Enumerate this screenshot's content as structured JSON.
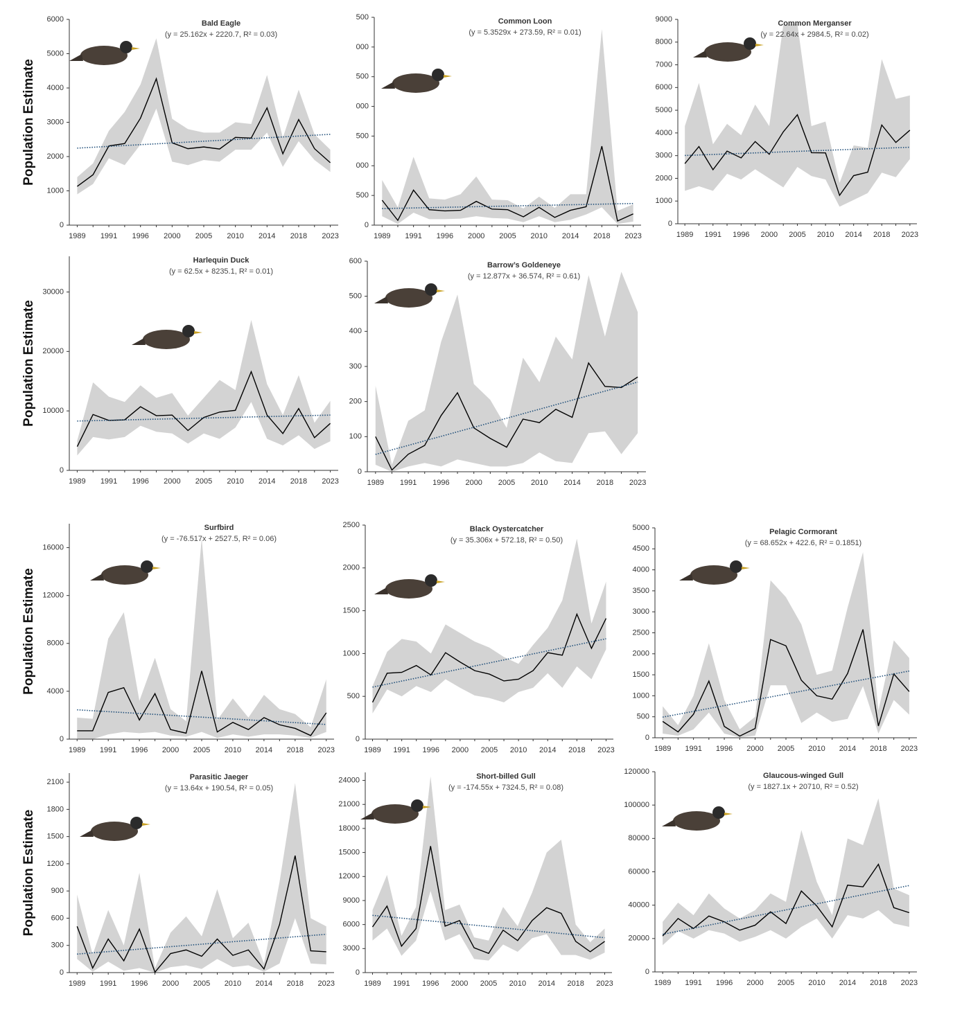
{
  "chart_data": [
    {
      "type": "band-line",
      "title": "Bald Eagle",
      "subtitle": "(y = 25.162x + 2220.7, R² = 0.03)",
      "ylabel": "Population Estimate",
      "categories": [
        "1989",
        null,
        "1991",
        null,
        "1996",
        null,
        "2000",
        null,
        "2005",
        null,
        "2010",
        null,
        "2014",
        null,
        "2018",
        null,
        "2023"
      ],
      "values": [
        1130,
        1470,
        2310,
        2380,
        3120,
        4270,
        2400,
        2230,
        2280,
        2220,
        2560,
        2540,
        3420,
        2080,
        3080,
        2230,
        1820
      ],
      "upper": [
        1400,
        1800,
        2750,
        3300,
        4100,
        5450,
        3100,
        2800,
        2700,
        2700,
        3000,
        2950,
        4380,
        2550,
        3950,
        2650,
        2200
      ],
      "lower": [
        900,
        1200,
        1950,
        1750,
        2350,
        3400,
        1850,
        1750,
        1900,
        1850,
        2200,
        2200,
        2700,
        1700,
        2450,
        1900,
        1550
      ],
      "trend": {
        "slope": 25.162,
        "intercept": 2220.7
      },
      "ylim": [
        0,
        6000
      ],
      "yticks": [
        0,
        1000,
        2000,
        3000,
        4000,
        5000,
        6000
      ],
      "line_color": "#000000",
      "band_color": "#d3d3d3",
      "trend_color": "#1f4e79"
    },
    {
      "type": "band-line",
      "title": "Common Loon",
      "subtitle": "(y = 5.3529x + 273.59, R² = 0.01)",
      "categories": [
        "1989",
        null,
        "1991",
        null,
        "1996",
        null,
        "2000",
        null,
        "2005",
        null,
        "2010",
        null,
        "2014",
        null,
        "2018",
        null,
        "2023"
      ],
      "values": [
        420,
        80,
        590,
        260,
        240,
        250,
        400,
        270,
        260,
        140,
        300,
        130,
        250,
        310,
        1330,
        70,
        190
      ],
      "upper": [
        760,
        300,
        1150,
        450,
        430,
        520,
        820,
        430,
        420,
        280,
        480,
        290,
        520,
        520,
        3300,
        240,
        350
      ],
      "lower": [
        150,
        20,
        210,
        100,
        100,
        110,
        150,
        120,
        110,
        50,
        150,
        50,
        90,
        180,
        300,
        20,
        60
      ],
      "trend": {
        "slope": 5.3529,
        "intercept": 273.59
      },
      "ylim": [
        0,
        3500
      ],
      "yticks": [
        0,
        500,
        {
          "value": 1000,
          "label": "000"
        },
        {
          "value": 1500,
          "label": "500"
        },
        {
          "value": 2000,
          "label": "000"
        },
        {
          "value": 2500,
          "label": "500"
        },
        {
          "value": 3000,
          "label": "000"
        },
        {
          "value": 3500,
          "label": "500"
        }
      ],
      "line_color": "#000000",
      "band_color": "#d3d3d3",
      "trend_color": "#1f4e79"
    },
    {
      "type": "band-line",
      "title": "Common Merganser",
      "subtitle": "(y = 22.64x + 2984.5, R² = 0.02)",
      "categories": [
        "1989",
        null,
        "1991",
        null,
        "1996",
        null,
        "2000",
        null,
        "2005",
        null,
        "2010",
        null,
        "2014",
        null,
        "2018",
        null,
        "2023"
      ],
      "values": [
        2650,
        3400,
        2380,
        3200,
        2900,
        3620,
        3060,
        4050,
        4800,
        3130,
        3120,
        1250,
        2120,
        2270,
        4350,
        3580,
        4120
      ],
      "upper": [
        4300,
        6200,
        3500,
        4400,
        3900,
        5250,
        4300,
        8750,
        8800,
        4300,
        4500,
        1800,
        3450,
        3350,
        7250,
        5500,
        5650
      ],
      "lower": [
        1450,
        1650,
        1450,
        2200,
        1950,
        2400,
        2000,
        1600,
        2500,
        2100,
        1950,
        750,
        1050,
        1350,
        2250,
        2050,
        2850
      ],
      "trend": {
        "slope": 22.64,
        "intercept": 2984.5
      },
      "ylim": [
        0,
        9000
      ],
      "yticks": [
        0,
        1000,
        2000,
        3000,
        4000,
        5000,
        6000,
        7000,
        8000,
        9000
      ],
      "line_color": "#000000",
      "band_color": "#d3d3d3",
      "trend_color": "#1f4e79"
    },
    {
      "type": "band-line",
      "title": "Harlequin Duck",
      "subtitle": "(y = 62.5x + 8235.1, R² = 0.01)",
      "ylabel": "Population Estimate",
      "categories": [
        "1989",
        null,
        "1991",
        null,
        "1996",
        null,
        "2000",
        null,
        "2005",
        null,
        "2010",
        null,
        "2014",
        null,
        "2018",
        null,
        "2023"
      ],
      "values": [
        4000,
        9400,
        8400,
        8500,
        10700,
        9200,
        9300,
        6700,
        8900,
        9800,
        10100,
        16600,
        9300,
        6200,
        10400,
        5500,
        7900
      ],
      "upper": [
        5000,
        14800,
        12400,
        11500,
        14300,
        12200,
        13000,
        9200,
        12200,
        15200,
        13500,
        25300,
        14500,
        9300,
        16000,
        8000,
        11700
      ],
      "lower": [
        2500,
        5600,
        5200,
        5600,
        7500,
        6500,
        6200,
        4500,
        6200,
        5300,
        7200,
        11500,
        5300,
        4200,
        5900,
        3600,
        4900
      ],
      "trend": {
        "slope": 62.5,
        "intercept": 8235.1
      },
      "ylim": [
        0,
        36000
      ],
      "yticks": [
        0,
        10000,
        20000,
        30000
      ],
      "line_color": "#000000",
      "band_color": "#d3d3d3",
      "trend_color": "#1f4e79"
    },
    {
      "type": "band-line",
      "title": "Barrow’s Goldeneye",
      "subtitle": "(y = 12.877x + 36.574, R² = 0.61)",
      "categories": [
        "1989",
        null,
        "1991",
        null,
        "1996",
        null,
        "2000",
        null,
        "2005",
        null,
        "2010",
        null,
        "2014",
        null,
        "2018",
        null,
        "2023"
      ],
      "values": [
        100,
        5,
        50,
        75,
        160,
        225,
        125,
        95,
        70,
        150,
        140,
        178,
        155,
        310,
        243,
        240,
        270
      ],
      "upper": [
        245,
        20,
        145,
        175,
        370,
        505,
        250,
        205,
        125,
        325,
        255,
        385,
        320,
        560,
        385,
        570,
        455
      ],
      "lower": [
        20,
        0,
        15,
        25,
        15,
        35,
        25,
        15,
        15,
        25,
        55,
        30,
        25,
        110,
        115,
        50,
        110
      ],
      "trend": {
        "slope": 12.877,
        "intercept": 36.574
      },
      "ylim": [
        0,
        600
      ],
      "yticks": [
        0,
        100,
        200,
        300,
        400,
        500,
        600
      ],
      "line_color": "#000000",
      "band_color": "#d3d3d3",
      "trend_color": "#1f4e79"
    },
    {
      "type": "band-line",
      "title": "Surfbird",
      "subtitle": "(y = -76.517x + 2527.5, R² = 0.06)",
      "ylabel": "Population Estimate",
      "categories": [
        "1989",
        null,
        "1991",
        null,
        "1996",
        null,
        "2000",
        null,
        "2005",
        null,
        "2010",
        null,
        "2014",
        null,
        "2018",
        null,
        "2023"
      ],
      "values": [
        700,
        700,
        3900,
        4300,
        1600,
        3800,
        800,
        500,
        5700,
        600,
        1400,
        800,
        1800,
        1200,
        900,
        300,
        2200
      ],
      "upper": [
        1800,
        1700,
        8400,
        10600,
        3200,
        6800,
        2500,
        1500,
        16800,
        1600,
        3400,
        1800,
        3700,
        2500,
        2100,
        1000,
        5000
      ],
      "lower": [
        0,
        0,
        400,
        600,
        500,
        600,
        300,
        200,
        600,
        100,
        400,
        200,
        400,
        400,
        300,
        100,
        600
      ],
      "trend": {
        "slope": -76.517,
        "intercept": 2527.5
      },
      "ylim": [
        0,
        18000
      ],
      "yticks": [
        0,
        4000,
        8000,
        12000,
        16000
      ],
      "line_color": "#000000",
      "band_color": "#d3d3d3",
      "trend_color": "#1f4e79"
    },
    {
      "type": "band-line",
      "title": "Black Oystercatcher",
      "subtitle": "(y = 35.306x + 572.18, R² = 0.50)",
      "categories": [
        "1989",
        null,
        "1991",
        null,
        "1996",
        null,
        "2000",
        null,
        "2005",
        null,
        "2010",
        null,
        "2014",
        null,
        "2018",
        null,
        "2023"
      ],
      "values": [
        430,
        770,
        780,
        860,
        750,
        1010,
        900,
        800,
        760,
        680,
        700,
        800,
        1010,
        980,
        1460,
        1060,
        1410
      ],
      "upper": [
        620,
        1020,
        1170,
        1140,
        1000,
        1340,
        1240,
        1140,
        1070,
        960,
        880,
        1100,
        1300,
        1620,
        2340,
        1350,
        1840
      ],
      "lower": [
        300,
        580,
        500,
        620,
        550,
        700,
        600,
        510,
        480,
        430,
        550,
        600,
        770,
        600,
        850,
        700,
        1050
      ],
      "trend": {
        "slope": 35.306,
        "intercept": 572.18
      },
      "ylim": [
        0,
        2500
      ],
      "yticks": [
        0,
        500,
        1000,
        1500,
        2000,
        2500
      ],
      "line_color": "#000000",
      "band_color": "#d3d3d3",
      "trend_color": "#1f4e79"
    },
    {
      "type": "band-line",
      "title": "Pelagic Cormorant",
      "subtitle": "(y = 68.652x + 422.6, R² = 0.1851)",
      "categories": [
        "1989",
        null,
        "1991",
        null,
        "1996",
        null,
        "2000",
        null,
        "2005",
        null,
        "2010",
        null,
        "2014",
        null,
        "2018",
        null,
        "2023"
      ],
      "values": [
        390,
        140,
        560,
        1350,
        270,
        40,
        220,
        2340,
        2190,
        1370,
        1000,
        920,
        1530,
        2580,
        280,
        1520,
        1100
      ],
      "upper": [
        750,
        300,
        1000,
        2250,
        900,
        200,
        500,
        3750,
        3350,
        2700,
        1500,
        1600,
        3100,
        4420,
        650,
        2320,
        1900
      ],
      "lower": [
        100,
        50,
        200,
        600,
        100,
        10,
        50,
        1250,
        1250,
        350,
        600,
        380,
        450,
        1230,
        100,
        900,
        550
      ],
      "trend": {
        "slope": 68.652,
        "intercept": 422.6
      },
      "ylim": [
        0,
        5000
      ],
      "yticks": [
        0,
        500,
        1000,
        1500,
        2000,
        2500,
        3000,
        3500,
        4000,
        4500,
        5000
      ],
      "line_color": "#000000",
      "band_color": "#d3d3d3",
      "trend_color": "#1f4e79"
    },
    {
      "type": "band-line",
      "title": "Parasitic Jaeger",
      "subtitle": "(y = 13.64x + 190.54, R² = 0.05)",
      "ylabel": "Population Estimate",
      "categories": [
        "1989",
        null,
        "1991",
        null,
        "1996",
        null,
        "2000",
        null,
        "2005",
        null,
        "2010",
        null,
        "2014",
        null,
        "2018",
        null,
        "2023"
      ],
      "values": [
        510,
        50,
        370,
        130,
        480,
        5,
        210,
        250,
        180,
        370,
        190,
        250,
        40,
        530,
        1290,
        240,
        230
      ],
      "upper": [
        860,
        200,
        690,
        300,
        1100,
        50,
        440,
        620,
        400,
        920,
        380,
        550,
        100,
        1000,
        2090,
        600,
        510
      ],
      "lower": [
        150,
        10,
        120,
        20,
        50,
        0,
        60,
        80,
        40,
        150,
        60,
        80,
        10,
        100,
        600,
        100,
        90
      ],
      "trend": {
        "slope": 13.64,
        "intercept": 190.54
      },
      "ylim": [
        0,
        2200
      ],
      "yticks": [
        0,
        300,
        600,
        900,
        1200,
        1500,
        1800,
        2100
      ],
      "line_color": "#000000",
      "band_color": "#d3d3d3",
      "trend_color": "#1f4e79"
    },
    {
      "type": "band-line",
      "title": "Short-billed Gull",
      "subtitle": "(y = -174.55x + 7324.5, R² = 0.08)",
      "categories": [
        "1989",
        null,
        "1991",
        null,
        "1996",
        null,
        "2000",
        null,
        "2005",
        null,
        "2010",
        null,
        "2014",
        null,
        "2018",
        null,
        "2023"
      ],
      "values": [
        5700,
        8300,
        3300,
        5500,
        15800,
        5800,
        6500,
        3100,
        2400,
        5300,
        4000,
        6500,
        8100,
        7400,
        3900,
        2600,
        3900
      ],
      "upper": [
        7800,
        12200,
        4600,
        8200,
        24500,
        7800,
        8500,
        4400,
        4000,
        8200,
        5800,
        10000,
        15000,
        16600,
        6000,
        3800,
        5500
      ],
      "lower": [
        4000,
        5500,
        2100,
        4000,
        10200,
        4000,
        4800,
        1700,
        1500,
        3500,
        2600,
        4300,
        4800,
        2200,
        2200,
        1600,
        2500
      ],
      "trend": {
        "slope": -174.55,
        "intercept": 7324.5
      },
      "ylim": [
        0,
        25000
      ],
      "yticks": [
        0,
        3000,
        6000,
        9000,
        12000,
        15000,
        18000,
        21000,
        24000
      ],
      "line_color": "#000000",
      "band_color": "#d3d3d3",
      "trend_color": "#1f4e79"
    },
    {
      "type": "band-line",
      "title": "Glaucous-winged Gull",
      "subtitle": "(y = 1827.1x + 20710, R² = 0.52)",
      "categories": [
        "1989",
        null,
        "1991",
        null,
        "1996",
        null,
        "2000",
        null,
        "2005",
        null,
        "2010",
        null,
        "2014",
        null,
        "2018",
        null,
        "2023"
      ],
      "values": [
        21500,
        32000,
        26000,
        33500,
        30000,
        25000,
        28000,
        36000,
        29000,
        48500,
        39500,
        27000,
        52000,
        51000,
        64500,
        38500,
        35500
      ],
      "upper": [
        30000,
        41500,
        34000,
        47000,
        38000,
        32000,
        37000,
        47000,
        42000,
        85000,
        54000,
        34000,
        80000,
        76000,
        104000,
        50000,
        46000
      ],
      "lower": [
        16000,
        24500,
        20000,
        25000,
        23000,
        18000,
        21000,
        25000,
        20000,
        27000,
        32000,
        20000,
        34000,
        32000,
        37000,
        29000,
        27000
      ],
      "trend": {
        "slope": 1827.1,
        "intercept": 20710
      },
      "ylim": [
        0,
        120000
      ],
      "yticks": [
        0,
        20000,
        40000,
        60000,
        80000,
        100000,
        120000
      ],
      "line_color": "#000000",
      "band_color": "#d3d3d3",
      "trend_color": "#1f4e79"
    }
  ]
}
